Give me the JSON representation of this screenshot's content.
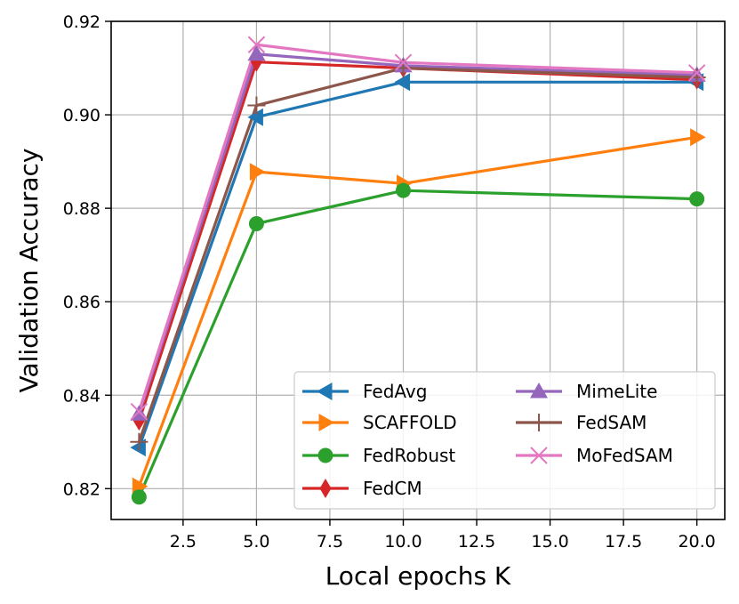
{
  "chart_data": {
    "type": "line",
    "title": "",
    "xlabel": "Local epochs K",
    "ylabel": "Validation Accuracy",
    "xlim": [
      0.05,
      20.95
    ],
    "ylim": [
      0.8134,
      0.92
    ],
    "grid": true,
    "legend_position": "lower-right",
    "x": [
      1,
      5,
      10,
      20
    ],
    "x_ticks": [
      2.5,
      5.0,
      7.5,
      10.0,
      12.5,
      15.0,
      17.5,
      20.0
    ],
    "x_tick_labels": [
      "2.5",
      "5.0",
      "7.5",
      "10.0",
      "12.5",
      "15.0",
      "17.5",
      "20.0"
    ],
    "y_ticks": [
      0.82,
      0.84,
      0.86,
      0.88,
      0.9,
      0.92
    ],
    "y_tick_labels": [
      "0.82",
      "0.84",
      "0.86",
      "0.88",
      "0.90",
      "0.92"
    ],
    "series": [
      {
        "name": "FedAvg",
        "values": [
          0.8288,
          0.8995,
          0.907,
          0.907
        ],
        "color": "#1f77b4",
        "marker": "triangle-left"
      },
      {
        "name": "SCAFFOLD",
        "values": [
          0.8205,
          0.8878,
          0.8853,
          0.8952
        ],
        "color": "#ff7f0e",
        "marker": "triangle-right"
      },
      {
        "name": "FedRobust",
        "values": [
          0.8182,
          0.8767,
          0.8838,
          0.882
        ],
        "color": "#2ca02c",
        "marker": "circle"
      },
      {
        "name": "FedCM",
        "values": [
          0.8345,
          0.9113,
          0.91,
          0.9075
        ],
        "color": "#d62728",
        "marker": "thin-diamond"
      },
      {
        "name": "MimeLite",
        "values": [
          0.836,
          0.913,
          0.9105,
          0.9085
        ],
        "color": "#9467bd",
        "marker": "triangle-up"
      },
      {
        "name": "FedSAM",
        "values": [
          0.83,
          0.902,
          0.91,
          0.908
        ],
        "color": "#8c564b",
        "marker": "plus"
      },
      {
        "name": "MoFedSAM",
        "values": [
          0.8365,
          0.915,
          0.9112,
          0.909
        ],
        "color": "#e377c2",
        "marker": "x"
      }
    ]
  }
}
